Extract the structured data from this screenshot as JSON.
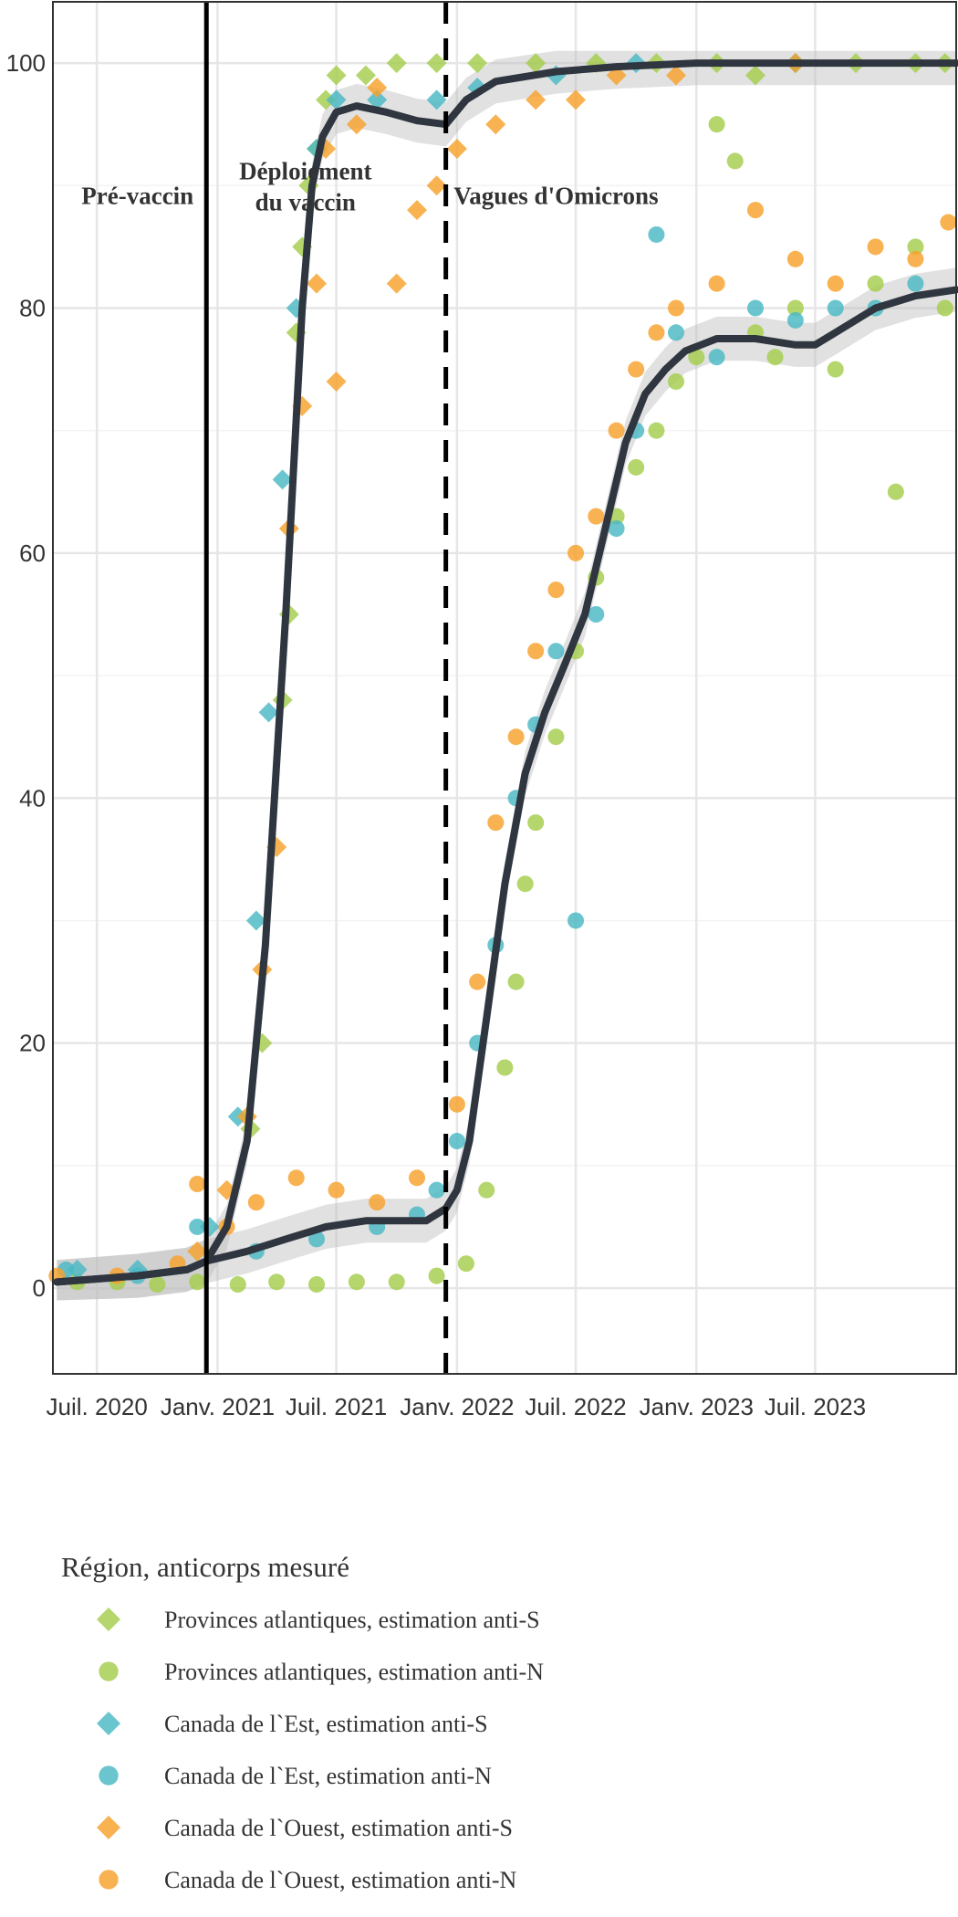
{
  "chart_data": {
    "type": "scatter",
    "xlabel": "",
    "ylabel": "",
    "x_range": [
      "2020-04-25",
      "2024-02-01"
    ],
    "ylim": [
      -7,
      105
    ],
    "y_ticks": [
      0,
      20,
      40,
      60,
      80,
      100
    ],
    "x_ticks": [
      {
        "date": "2020-07-01",
        "label": "Juil. 2020"
      },
      {
        "date": "2021-01-01",
        "label": "Janv. 2021"
      },
      {
        "date": "2021-07-01",
        "label": "Juil. 2021"
      },
      {
        "date": "2022-01-01",
        "label": "Janv. 2022"
      },
      {
        "date": "2022-07-01",
        "label": "Juil. 2022"
      },
      {
        "date": "2023-01-01",
        "label": "Janv. 2023"
      },
      {
        "date": "2023-07-01",
        "label": "Juil. 2023"
      }
    ],
    "grid": true,
    "phase_lines": [
      {
        "date": "2020-12-15",
        "style": "solid"
      },
      {
        "date": "2021-12-15",
        "style": "dashed"
      }
    ],
    "phase_labels": [
      {
        "lines": [
          "Pré-vaccin"
        ],
        "date": "2020-09-01",
        "y": 88.5
      },
      {
        "lines": [
          "Déploiement",
          "du vaccin"
        ],
        "date": "2021-05-15",
        "y": 90.5
      },
      {
        "lines": [
          "Vagues d'Omicrons"
        ],
        "date": "2022-06-01",
        "y": 88.5
      }
    ],
    "legend_title": "Région, anticorps mesuré",
    "legend_position": "bottom",
    "series": [
      {
        "name": "Provinces atlantiques, estimation anti-S",
        "marker": "diamond",
        "color": "#a3cd4c",
        "points": [
          [
            "2021-02-20",
            13
          ],
          [
            "2021-03-10",
            20
          ],
          [
            "2021-04-10",
            48
          ],
          [
            "2021-04-20",
            55
          ],
          [
            "2021-05-01",
            78
          ],
          [
            "2021-05-10",
            85
          ],
          [
            "2021-05-20",
            90
          ],
          [
            "2021-06-01",
            93
          ],
          [
            "2021-06-15",
            97
          ],
          [
            "2021-07-01",
            99
          ],
          [
            "2021-08-15",
            99
          ],
          [
            "2021-10-01",
            100
          ],
          [
            "2021-12-01",
            100
          ],
          [
            "2022-02-01",
            100
          ],
          [
            "2022-05-01",
            100
          ],
          [
            "2022-08-01",
            100
          ],
          [
            "2022-11-01",
            100
          ],
          [
            "2023-02-01",
            100
          ],
          [
            "2023-04-01",
            99
          ],
          [
            "2023-06-01",
            100
          ],
          [
            "2023-09-01",
            100
          ],
          [
            "2023-12-01",
            100
          ],
          [
            "2024-01-15",
            100
          ]
        ]
      },
      {
        "name": "Provinces atlantiques, estimation anti-N",
        "marker": "circle",
        "color": "#a3cd4c",
        "points": [
          [
            "2020-06-01",
            0.5
          ],
          [
            "2020-08-01",
            0.5
          ],
          [
            "2020-10-01",
            0.3
          ],
          [
            "2020-12-01",
            0.5
          ],
          [
            "2021-02-01",
            0.3
          ],
          [
            "2021-04-01",
            0.5
          ],
          [
            "2021-06-01",
            0.3
          ],
          [
            "2021-08-01",
            0.5
          ],
          [
            "2021-10-01",
            0.5
          ],
          [
            "2021-12-01",
            1
          ],
          [
            "2022-01-15",
            2
          ],
          [
            "2022-02-15",
            8
          ],
          [
            "2022-03-15",
            18
          ],
          [
            "2022-04-01",
            25
          ],
          [
            "2022-04-15",
            33
          ],
          [
            "2022-05-01",
            38
          ],
          [
            "2022-06-01",
            45
          ],
          [
            "2022-07-01",
            52
          ],
          [
            "2022-08-01",
            58
          ],
          [
            "2022-09-01",
            63
          ],
          [
            "2022-10-01",
            67
          ],
          [
            "2022-11-01",
            70
          ],
          [
            "2022-12-01",
            74
          ],
          [
            "2023-01-01",
            76
          ],
          [
            "2023-02-01",
            95
          ],
          [
            "2023-03-01",
            92
          ],
          [
            "2023-04-01",
            78
          ],
          [
            "2023-05-01",
            76
          ],
          [
            "2023-06-01",
            80
          ],
          [
            "2023-08-01",
            75
          ],
          [
            "2023-10-01",
            82
          ],
          [
            "2023-11-01",
            65
          ],
          [
            "2023-12-01",
            85
          ],
          [
            "2024-01-15",
            80
          ]
        ]
      },
      {
        "name": "Canada de l`Est, estimation anti-S",
        "marker": "diamond",
        "color": "#4ab8c4",
        "points": [
          [
            "2020-06-01",
            1.5
          ],
          [
            "2020-09-01",
            1.5
          ],
          [
            "2020-12-20",
            5
          ],
          [
            "2021-02-01",
            14
          ],
          [
            "2021-03-01",
            30
          ],
          [
            "2021-03-20",
            47
          ],
          [
            "2021-04-10",
            66
          ],
          [
            "2021-05-01",
            80
          ],
          [
            "2021-06-01",
            93
          ],
          [
            "2021-07-01",
            97
          ],
          [
            "2021-09-01",
            97
          ],
          [
            "2021-12-01",
            97
          ],
          [
            "2022-02-01",
            98
          ],
          [
            "2022-06-01",
            99
          ],
          [
            "2022-10-01",
            100
          ],
          [
            "2023-06-01",
            100
          ]
        ]
      },
      {
        "name": "Canada de l`Est, estimation anti-N",
        "marker": "circle",
        "color": "#4ab8c4",
        "points": [
          [
            "2020-05-15",
            1.5
          ],
          [
            "2020-09-01",
            1
          ],
          [
            "2020-12-01",
            5
          ],
          [
            "2021-03-01",
            3
          ],
          [
            "2021-06-01",
            4
          ],
          [
            "2021-09-01",
            5
          ],
          [
            "2021-11-01",
            6
          ],
          [
            "2021-12-01",
            8
          ],
          [
            "2022-01-01",
            12
          ],
          [
            "2022-02-01",
            20
          ],
          [
            "2022-03-01",
            28
          ],
          [
            "2022-04-01",
            40
          ],
          [
            "2022-05-01",
            46
          ],
          [
            "2022-06-01",
            52
          ],
          [
            "2022-07-01",
            30
          ],
          [
            "2022-08-01",
            55
          ],
          [
            "2022-09-01",
            62
          ],
          [
            "2022-10-01",
            70
          ],
          [
            "2022-11-01",
            86
          ],
          [
            "2022-12-01",
            78
          ],
          [
            "2023-02-01",
            76
          ],
          [
            "2023-04-01",
            80
          ],
          [
            "2023-06-01",
            79
          ],
          [
            "2023-08-01",
            80
          ],
          [
            "2023-10-01",
            80
          ],
          [
            "2023-12-01",
            82
          ]
        ]
      },
      {
        "name": "Canada de l`Ouest, estimation anti-S",
        "marker": "diamond",
        "color": "#f7a12b",
        "points": [
          [
            "2020-12-01",
            3
          ],
          [
            "2021-01-15",
            8
          ],
          [
            "2021-02-15",
            14
          ],
          [
            "2021-03-10",
            26
          ],
          [
            "2021-04-01",
            36
          ],
          [
            "2021-04-20",
            62
          ],
          [
            "2021-05-10",
            72
          ],
          [
            "2021-06-01",
            82
          ],
          [
            "2021-06-15",
            93
          ],
          [
            "2021-07-01",
            74
          ],
          [
            "2021-08-01",
            95
          ],
          [
            "2021-09-01",
            98
          ],
          [
            "2021-10-01",
            82
          ],
          [
            "2021-11-01",
            88
          ],
          [
            "2021-12-01",
            90
          ],
          [
            "2022-01-01",
            93
          ],
          [
            "2022-03-01",
            95
          ],
          [
            "2022-05-01",
            97
          ],
          [
            "2022-07-01",
            97
          ],
          [
            "2022-09-01",
            99
          ],
          [
            "2022-12-01",
            99
          ],
          [
            "2023-06-01",
            100
          ]
        ]
      },
      {
        "name": "Canada de l`Ouest, estimation anti-N",
        "marker": "circle",
        "color": "#f7a12b",
        "points": [
          [
            "2020-05-01",
            1
          ],
          [
            "2020-08-01",
            1
          ],
          [
            "2020-11-01",
            2
          ],
          [
            "2020-12-01",
            8.5
          ],
          [
            "2021-01-15",
            5
          ],
          [
            "2021-03-01",
            7
          ],
          [
            "2021-05-01",
            9
          ],
          [
            "2021-07-01",
            8
          ],
          [
            "2021-09-01",
            7
          ],
          [
            "2021-11-01",
            9
          ],
          [
            "2022-01-01",
            15
          ],
          [
            "2022-02-01",
            25
          ],
          [
            "2022-03-01",
            38
          ],
          [
            "2022-04-01",
            45
          ],
          [
            "2022-05-01",
            52
          ],
          [
            "2022-06-01",
            57
          ],
          [
            "2022-07-01",
            60
          ],
          [
            "2022-08-01",
            63
          ],
          [
            "2022-09-01",
            70
          ],
          [
            "2022-10-01",
            75
          ],
          [
            "2022-11-01",
            78
          ],
          [
            "2022-12-01",
            80
          ],
          [
            "2023-02-01",
            82
          ],
          [
            "2023-04-01",
            88
          ],
          [
            "2023-06-01",
            84
          ],
          [
            "2023-08-01",
            82
          ],
          [
            "2023-10-01",
            85
          ],
          [
            "2023-12-01",
            84
          ],
          [
            "2024-01-20",
            87
          ]
        ]
      }
    ],
    "smooth_lines": [
      {
        "label": "anti-S",
        "color": "#2f3640",
        "points": [
          [
            "2020-05-01",
            0.5
          ],
          [
            "2020-09-01",
            1
          ],
          [
            "2020-11-15",
            1.5
          ],
          [
            "2020-12-15",
            2.2
          ],
          [
            "2021-01-15",
            5
          ],
          [
            "2021-02-15",
            12
          ],
          [
            "2021-03-15",
            28
          ],
          [
            "2021-04-15",
            55
          ],
          [
            "2021-05-10",
            80
          ],
          [
            "2021-05-25",
            90
          ],
          [
            "2021-06-10",
            94
          ],
          [
            "2021-07-01",
            96
          ],
          [
            "2021-08-01",
            96.5
          ],
          [
            "2021-09-15",
            96
          ],
          [
            "2021-11-01",
            95.3
          ],
          [
            "2021-12-15",
            95
          ],
          [
            "2022-01-15",
            97
          ],
          [
            "2022-03-01",
            98.5
          ],
          [
            "2022-06-01",
            99.3
          ],
          [
            "2022-09-01",
            99.7
          ],
          [
            "2023-01-01",
            100
          ],
          [
            "2024-02-01",
            100
          ]
        ]
      },
      {
        "label": "anti-N",
        "color": "#2f3640",
        "points": [
          [
            "2020-05-01",
            0.5
          ],
          [
            "2020-09-01",
            1
          ],
          [
            "2020-11-15",
            1.5
          ],
          [
            "2020-12-15",
            2.2
          ],
          [
            "2021-02-15",
            3
          ],
          [
            "2021-04-15",
            4
          ],
          [
            "2021-06-15",
            5
          ],
          [
            "2021-08-15",
            5.5
          ],
          [
            "2021-11-15",
            5.5
          ],
          [
            "2021-12-15",
            6.5
          ],
          [
            "2022-01-01",
            8
          ],
          [
            "2022-01-20",
            12
          ],
          [
            "2022-02-15",
            22
          ],
          [
            "2022-03-15",
            33
          ],
          [
            "2022-04-15",
            42
          ],
          [
            "2022-05-15",
            47
          ],
          [
            "2022-06-15",
            51
          ],
          [
            "2022-07-15",
            55
          ],
          [
            "2022-08-15",
            62
          ],
          [
            "2022-09-15",
            69
          ],
          [
            "2022-10-15",
            73
          ],
          [
            "2022-11-15",
            75
          ],
          [
            "2022-12-15",
            76.5
          ],
          [
            "2023-02-01",
            77.5
          ],
          [
            "2023-04-01",
            77.5
          ],
          [
            "2023-06-01",
            77
          ],
          [
            "2023-07-01",
            77
          ],
          [
            "2023-08-01",
            78
          ],
          [
            "2023-10-01",
            80
          ],
          [
            "2023-12-01",
            81
          ],
          [
            "2024-02-01",
            81.5
          ]
        ]
      }
    ]
  }
}
